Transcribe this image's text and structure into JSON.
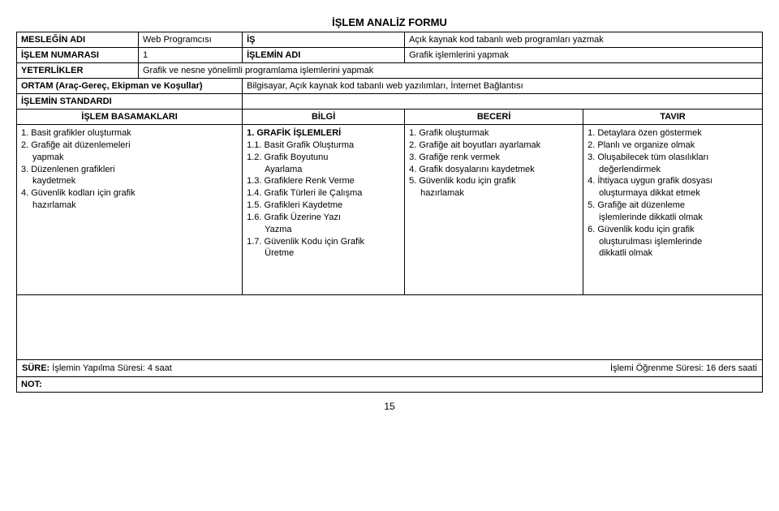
{
  "title": "İŞLEM ANALİZ FORMU",
  "rows": {
    "meslek_label": "MESLEĞİN ADI",
    "meslek_value": "Web Programcısı",
    "is_label": "İŞ",
    "is_value": "Açık kaynak kod tabanlı web programları yazmak",
    "islem_no_label": "İŞLEM NUMARASI",
    "islem_no_value": "1",
    "islemin_adi_label": "İŞLEMİN ADI",
    "islemin_adi_value": "Grafik işlemlerini yapmak",
    "yeterlikler_label": "YETERLİKLER",
    "yeterlikler_value": "Grafik ve nesne yönelimli programlama işlemlerini yapmak",
    "ortam_label": "ORTAM (Araç-Gereç, Ekipman ve Koşullar)",
    "ortam_value": "Bilgisayar, Açık kaynak kod tabanlı web yazılımları, İnternet Bağlantısı",
    "standard_label": "İŞLEMİN STANDARDI"
  },
  "headers": {
    "basamak": "İŞLEM BASAMAKLARI",
    "bilgi": "BİLGİ",
    "beceri": "BECERİ",
    "tavir": "TAVIR"
  },
  "basamak": {
    "l1": "1. Basit grafikler oluşturmak",
    "l2a": "2. Grafiğe ait düzenlemeleri",
    "l2b": "yapmak",
    "l3a": "3. Düzenlenen grafikleri",
    "l3b": "kaydetmek",
    "l4a": "4. Güvenlik kodları için grafik",
    "l4b": "hazırlamak"
  },
  "bilgi": {
    "l1": "1.  GRAFİK İŞLEMLERİ",
    "l11": "1.1. Basit Grafik Oluşturma",
    "l12a": "1.2. Grafik Boyutunu",
    "l12b": "Ayarlama",
    "l13": "1.3. Grafiklere Renk Verme",
    "l14": "1.4. Grafik Türleri ile Çalışma",
    "l15": "1.5. Grafikleri Kaydetme",
    "l16a": "1.6. Grafik Üzerine Yazı",
    "l16b": "Yazma",
    "l17a": "1.7. Güvenlik Kodu için Grafik",
    "l17b": "Üretme"
  },
  "beceri": {
    "l1": "1. Grafik oluşturmak",
    "l2": "2. Grafiğe ait boyutları ayarlamak",
    "l3": "3. Grafiğe renk vermek",
    "l4": "4. Grafik dosyalarını kaydetmek",
    "l5a": "5. Güvenlik kodu için grafik",
    "l5b": "hazırlamak"
  },
  "tavir": {
    "l1": "1. Detaylara özen göstermek",
    "l2": "2. Planlı ve organize olmak",
    "l3a": "3. Oluşabilecek tüm olasılıkları",
    "l3b": "değerlendirmek",
    "l4a": "4. İhtiyaca uygun grafik dosyası",
    "l4b": "oluşturmaya dikkat etmek",
    "l5a": "5. Grafiğe ait düzenleme",
    "l5b": "işlemlerinde dikkatli olmak",
    "l6a": "6. Güvenlik kodu için grafik",
    "l6b": "oluşturulması işlemlerinde",
    "l6c": "dikkatli olmak"
  },
  "footer": {
    "sure": "SÜRE: İşlemin Yapılma Süresi: 4 saat",
    "ogrenme": "İşlemi Öğrenme Süresi: 16 ders saati",
    "not": "NOT:",
    "page": "15"
  }
}
